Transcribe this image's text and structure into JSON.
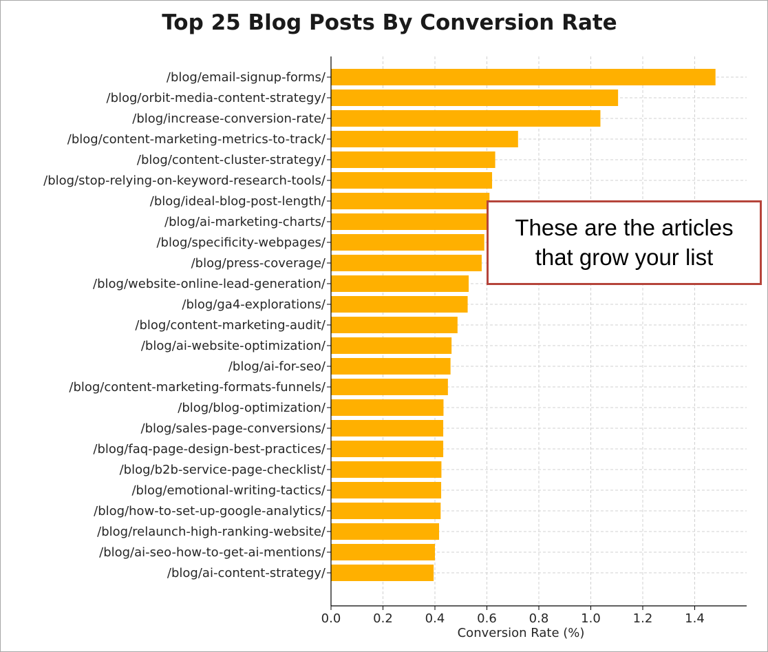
{
  "colors": {
    "bar": "#FFB000",
    "grid": "#d0d0d0",
    "axis": "#000000",
    "callout_border": "#B5443A"
  },
  "callout": {
    "text": "These are the articles that grow your list"
  },
  "chart_data": {
    "type": "bar",
    "orientation": "horizontal",
    "title": "Top 25 Blog Posts By Conversion Rate",
    "xlabel": "Conversion Rate (%)",
    "ylabel": "",
    "xlim": [
      0,
      1.58
    ],
    "xticks": [
      "0.0",
      "0.2",
      "0.4",
      "0.6",
      "0.8",
      "1.0",
      "1.2",
      "1.4"
    ],
    "grid": true,
    "categories": [
      "/blog/email-signup-forms/",
      "/blog/orbit-media-content-strategy/",
      "/blog/increase-conversion-rate/",
      "/blog/content-marketing-metrics-to-track/",
      "/blog/content-cluster-strategy/",
      "/blog/stop-relying-on-keyword-research-tools/",
      "/blog/ideal-blog-post-length/",
      "/blog/ai-marketing-charts/",
      "/blog/specificity-webpages/",
      "/blog/press-coverage/",
      "/blog/website-online-lead-generation/",
      "/blog/ga4-explorations/",
      "/blog/content-marketing-audit/",
      "/blog/ai-website-optimization/",
      "/blog/ai-for-seo/",
      "/blog/content-marketing-formats-funnels/",
      "/blog/blog-optimization/",
      "/blog/sales-page-conversions/",
      "/blog/faq-page-design-best-practices/",
      "/blog/b2b-service-page-checklist/",
      "/blog/emotional-writing-tactics/",
      "/blog/how-to-set-up-google-analytics/",
      "/blog/relaunch-high-ranking-website/",
      "/blog/ai-seo-how-to-get-ai-mentions/",
      "/blog/ai-content-strategy/"
    ],
    "values": [
      1.48,
      1.105,
      1.037,
      0.72,
      0.632,
      0.62,
      0.61,
      0.6,
      0.59,
      0.58,
      0.53,
      0.526,
      0.487,
      0.464,
      0.46,
      0.45,
      0.433,
      0.432,
      0.432,
      0.425,
      0.424,
      0.422,
      0.416,
      0.4,
      0.395
    ]
  }
}
